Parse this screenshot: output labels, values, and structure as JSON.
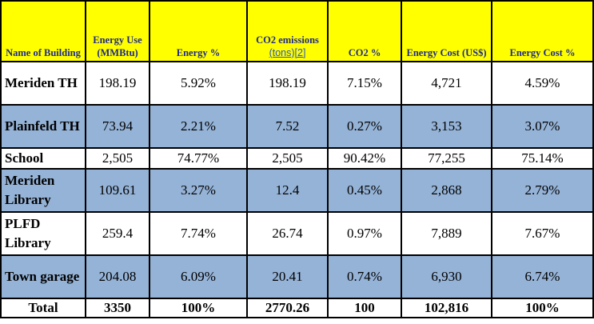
{
  "headers": {
    "building": "Name of Building",
    "energy_use": "Energy Use (MMBtu)",
    "energy_pct": "Energy %",
    "co2_line1": "CO2 emissions",
    "co2_link": "(tons)[2]",
    "co2_pct": "CO2 %",
    "energy_cost": "Energy Cost (US$)",
    "energy_cost_pct": "Energy Cost %"
  },
  "rows": [
    {
      "name": "Meriden TH",
      "energy_use": "198.19",
      "energy_pct": "5.92%",
      "co2": "198.19",
      "co2_pct": "7.15%",
      "cost": "4,721",
      "cost_pct": "4.59%"
    },
    {
      "name": "Plainfeld TH",
      "energy_use": "73.94",
      "energy_pct": "2.21%",
      "co2": "7.52",
      "co2_pct": "0.27%",
      "cost": "3,153",
      "cost_pct": "3.07%"
    },
    {
      "name": "School",
      "energy_use": "2,505",
      "energy_pct": "74.77%",
      "co2": "2,505",
      "co2_pct": "90.42%",
      "cost": "77,255",
      "cost_pct": "75.14%"
    },
    {
      "name": "Meriden Library",
      "energy_use": "109.61",
      "energy_pct": "3.27%",
      "co2": "12.4",
      "co2_pct": "0.45%",
      "cost": "2,868",
      "cost_pct": "2.79%"
    },
    {
      "name": "PLFD Library",
      "energy_use": "259.4",
      "energy_pct": "7.74%",
      "co2": "26.74",
      "co2_pct": "0.97%",
      "cost": "7,889",
      "cost_pct": "7.67%"
    },
    {
      "name": "Town garage",
      "energy_use": "204.08",
      "energy_pct": "6.09%",
      "co2": "20.41",
      "co2_pct": "0.74%",
      "cost": "6,930",
      "cost_pct": "6.74%"
    }
  ],
  "total": {
    "label": "Total",
    "energy_use": "3350",
    "energy_pct": "100%",
    "co2": "2770.26",
    "co2_pct": "100",
    "cost": "102,816",
    "cost_pct": "100%"
  },
  "colors": {
    "header_bg": "#ffff00",
    "header_text": "#1f2a8a",
    "alt_row": "#95b3d7",
    "link": "#2a56c6"
  }
}
